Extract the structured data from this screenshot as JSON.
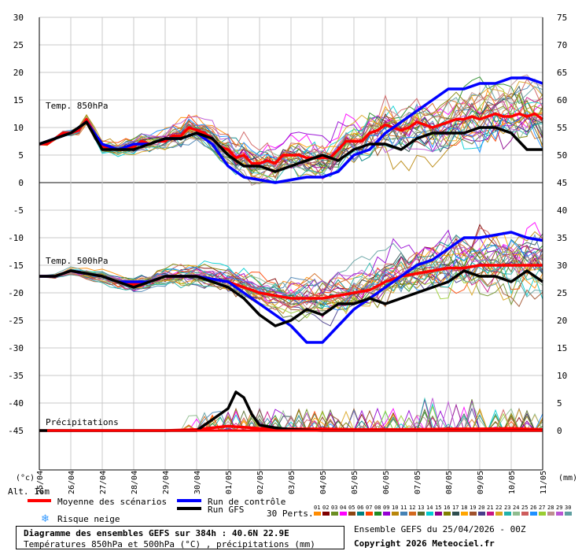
{
  "chart_data": {
    "type": "line",
    "left_axis_ticks": [
      "30",
      "25",
      "20",
      "15",
      "10",
      "5",
      "0",
      "-5",
      "-10",
      "-15",
      "-20",
      "-25",
      "-30",
      "-35",
      "-40",
      "-45"
    ],
    "right_axis_ticks": [
      "75",
      "70",
      "65",
      "60",
      "55",
      "50",
      "45",
      "40",
      "35",
      "30",
      "25",
      "20",
      "15",
      "10",
      "5",
      "0"
    ],
    "left_unit": "(°c)",
    "right_unit": "(mm)",
    "x_labels": [
      "25/04",
      "26/04",
      "27/04",
      "28/04",
      "29/04",
      "30/04",
      "01/05",
      "02/05",
      "03/05",
      "04/05",
      "05/05",
      "06/05",
      "07/05",
      "08/05",
      "09/05",
      "10/05",
      "11/05"
    ],
    "altitude_label": "Alt. 16m",
    "panel_labels": {
      "t850": "Temp. 850hPa",
      "t500": "Temp. 500hPa",
      "precip": "Précipitations"
    },
    "ylim_left": [
      -45,
      30
    ],
    "ylim_right": [
      0,
      75
    ],
    "series": [
      {
        "key": "t850_mean",
        "color": "#ff0000",
        "x": [
          0,
          0.25,
          0.5,
          0.75,
          1,
          1.25,
          1.5,
          1.75,
          2,
          2.25,
          2.5,
          2.75,
          3,
          3.25,
          3.5,
          3.75,
          4,
          4.25,
          4.5,
          4.75,
          5,
          5.25,
          5.5,
          5.75,
          6,
          6.25,
          6.5,
          6.75,
          7,
          7.25,
          7.5,
          7.75,
          8,
          8.25,
          8.5,
          8.75,
          9,
          9.25,
          9.5,
          9.75,
          10,
          10.25,
          10.5,
          10.75,
          11,
          11.25,
          11.5,
          11.75,
          12,
          12.25,
          12.5,
          12.75,
          13,
          13.25,
          13.5,
          13.75,
          14,
          14.25,
          14.5,
          14.75,
          15,
          15.25,
          15.5,
          15.75,
          16
        ],
        "y": [
          7,
          7,
          8,
          9,
          9,
          9.5,
          11.5,
          9,
          6.5,
          6.5,
          6,
          6.5,
          6.5,
          7.5,
          7,
          7.5,
          7.5,
          8.5,
          8.5,
          10,
          9.5,
          9,
          8,
          6.5,
          6,
          4.5,
          5,
          3.5,
          3.5,
          4,
          3.5,
          5,
          5,
          5,
          4.5,
          4.5,
          4.5,
          4.5,
          6,
          7.5,
          7.5,
          7.5,
          9,
          9.5,
          10.5,
          10,
          9.5,
          10,
          11,
          10.5,
          10,
          10.5,
          11,
          11.5,
          11.5,
          12,
          11.5,
          12,
          12.5,
          12,
          12,
          12.5,
          12,
          12.5,
          11.5
        ]
      },
      {
        "key": "t850_control",
        "color": "#0000ff",
        "x": [
          0,
          0.5,
          1,
          1.5,
          2,
          2.5,
          3,
          3.5,
          4,
          4.5,
          5,
          5.5,
          6,
          6.5,
          7,
          7.5,
          8,
          8.5,
          9,
          9.5,
          10,
          10.5,
          11,
          11.5,
          12,
          12.5,
          13,
          13.5,
          14,
          14.5,
          15,
          15.5,
          16
        ],
        "y": [
          7,
          8,
          9,
          11,
          7,
          6,
          7,
          7,
          8,
          8,
          9,
          7,
          3,
          1,
          0.5,
          0,
          0.5,
          1,
          1,
          2,
          5,
          6,
          9,
          11,
          13,
          15,
          17,
          17,
          18,
          18,
          19,
          19,
          18
        ]
      },
      {
        "key": "t850_gfs",
        "color": "#000000",
        "x": [
          0,
          0.5,
          1,
          1.5,
          2,
          2.5,
          3,
          3.5,
          4,
          4.5,
          5,
          5.5,
          6,
          6.5,
          7,
          7.5,
          8,
          8.5,
          9,
          9.5,
          10,
          10.5,
          11,
          11.5,
          12,
          12.5,
          13,
          13.5,
          14,
          14.5,
          15,
          15.5,
          16
        ],
        "y": [
          7,
          8,
          9,
          11,
          6,
          6,
          6,
          7,
          8,
          8,
          9,
          8,
          5,
          3,
          3,
          2,
          3,
          4,
          5,
          4,
          6,
          7,
          7,
          6,
          8,
          9,
          9,
          9,
          10,
          10,
          9,
          6,
          6
        ]
      },
      {
        "key": "t500_mean",
        "color": "#ff0000",
        "x": [
          0,
          0.5,
          1,
          1.5,
          2,
          2.5,
          3,
          3.5,
          4,
          4.5,
          5,
          5.5,
          6,
          6.5,
          7,
          7.5,
          8,
          8.5,
          9,
          9.5,
          10,
          10.5,
          11,
          11.5,
          12,
          12.5,
          13,
          13.5,
          14,
          14.5,
          15,
          15.5,
          16
        ],
        "y": [
          -17,
          -17,
          -16,
          -16.5,
          -17,
          -18,
          -18.5,
          -18,
          -17,
          -17,
          -17,
          -17.5,
          -18,
          -19,
          -20,
          -20.5,
          -21,
          -21,
          -21,
          -20.5,
          -20,
          -19.5,
          -18,
          -17,
          -16.5,
          -16,
          -15.5,
          -15.5,
          -15,
          -15,
          -15,
          -15,
          -15
        ]
      },
      {
        "key": "t500_control",
        "color": "#0000ff",
        "x": [
          0,
          0.5,
          1,
          1.5,
          2,
          2.5,
          3,
          3.5,
          4,
          4.5,
          5,
          5.5,
          6,
          6.5,
          7,
          7.5,
          8,
          8.5,
          9,
          9.5,
          10,
          10.5,
          11,
          11.5,
          12,
          12.5,
          13,
          13.5,
          14,
          14.5,
          15,
          15.5,
          16
        ],
        "y": [
          -17,
          -17,
          -16,
          -16.5,
          -17,
          -18,
          -18,
          -18,
          -17,
          -17,
          -17,
          -17.5,
          -18,
          -20,
          -22,
          -24,
          -26,
          -29,
          -29,
          -26,
          -23,
          -21,
          -19,
          -17,
          -15,
          -14,
          -12,
          -10,
          -10,
          -9.5,
          -9,
          -10,
          -10.5
        ]
      },
      {
        "key": "t500_gfs",
        "color": "#000000",
        "x": [
          0,
          0.5,
          1,
          1.5,
          2,
          2.5,
          3,
          3.5,
          4,
          4.5,
          5,
          5.5,
          6,
          6.5,
          7,
          7.5,
          8,
          8.5,
          9,
          9.5,
          10,
          10.5,
          11,
          11.5,
          12,
          12.5,
          13,
          13.5,
          14,
          14.5,
          15,
          15.5,
          16
        ],
        "y": [
          -17,
          -17,
          -16,
          -16.5,
          -17,
          -18,
          -19,
          -18,
          -17,
          -17,
          -17,
          -18,
          -19,
          -21,
          -24,
          -26,
          -25,
          -23,
          -24,
          -22,
          -22,
          -21,
          -22,
          -21,
          -20,
          -19,
          -18,
          -16,
          -17,
          -17,
          -18,
          -16,
          -18
        ]
      },
      {
        "key": "precip_mean",
        "color": "#ff0000",
        "x": [
          0,
          1,
          2,
          3,
          4,
          5,
          6,
          7,
          8,
          9,
          10,
          11,
          12,
          13,
          14,
          15,
          16
        ],
        "y": [
          0,
          0,
          0,
          0,
          0,
          0.2,
          0.8,
          0.4,
          0.3,
          0.3,
          0.2,
          0.2,
          0.2,
          0.3,
          0.3,
          0.4,
          0.2
        ]
      },
      {
        "key": "precip_gfs",
        "color": "#000000",
        "x": [
          0,
          1,
          2,
          3,
          4,
          5,
          6,
          6.25,
          6.5,
          6.75,
          7,
          7.5,
          8,
          9,
          10,
          11,
          12,
          13,
          14,
          15,
          16
        ],
        "y": [
          0,
          0,
          0,
          0,
          0,
          0,
          4,
          7,
          6,
          3,
          1,
          0.5,
          0.2,
          0,
          0,
          0,
          0,
          0,
          0,
          0,
          0
        ]
      }
    ],
    "legend": {
      "mean": "Moyenne des scénarios",
      "control": "Run de contrôle",
      "gfs": "Run GFS",
      "snow": "Risque neige",
      "perts": "30 Perts."
    },
    "member_numbers": [
      "01",
      "02",
      "03",
      "04",
      "05",
      "06",
      "07",
      "08",
      "09",
      "10",
      "11",
      "12",
      "13",
      "14",
      "15",
      "16",
      "17",
      "18",
      "19",
      "20",
      "21",
      "22",
      "23",
      "24",
      "25",
      "26",
      "27",
      "28",
      "29",
      "30"
    ],
    "member_colors": [
      "#ff8c00",
      "#800000",
      "#6b8e23",
      "#ff00ff",
      "#8b4513",
      "#008080",
      "#ff4500",
      "#228b22",
      "#9400d3",
      "#b8860b",
      "#4682b4",
      "#d2691e",
      "#556b2f",
      "#00ced1",
      "#8b008b",
      "#808000",
      "#2f4f4f",
      "#ffa500",
      "#a0522d",
      "#483d8b",
      "#c71585",
      "#daa520",
      "#20b2aa",
      "#8fbc8f",
      "#cd5c5c",
      "#1e90ff",
      "#9acd32",
      "#bc8f8f",
      "#ba55d3",
      "#5f9ea0"
    ]
  },
  "footer": {
    "title": "Diagramme des ensembles GEFS sur 384h : 40.6N 22.9E",
    "subtitle": "Températures 850hPa et 500hPa (°C) , précipitations (mm)",
    "ensemble_info": "Ensemble GEFS du 25/04/2026 - 00Z",
    "copyright": "Copyright 2026 Meteociel.fr"
  }
}
